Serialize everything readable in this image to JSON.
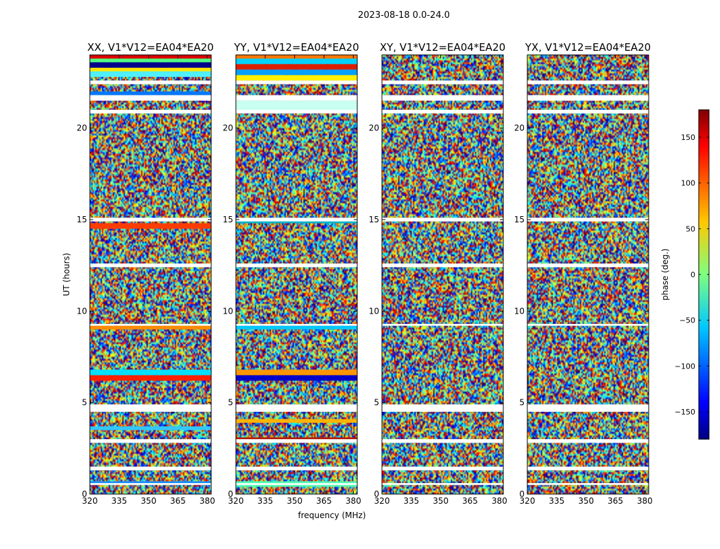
{
  "figure": {
    "suptitle": "2023-08-18 0.0-24.0",
    "shared_xlabel": "frequency (MHz)",
    "shared_ylabel": "UT (hours)"
  },
  "colorbar": {
    "label": "phase (deg.)",
    "range": [
      -180,
      180
    ],
    "ticks": [
      -150,
      -100,
      -50,
      0,
      50,
      100,
      150
    ],
    "tick_labels": [
      "−150",
      "−100",
      "−50",
      "0",
      "50",
      "100",
      "150"
    ],
    "colormap": "jet"
  },
  "chart_data": [
    {
      "type": "heatmap",
      "title": "XX, V1*V12=EA04*EA20",
      "xlabel": "frequency (MHz)",
      "ylabel": "UT (hours)",
      "xlim": [
        320,
        382
      ],
      "ylim": [
        0,
        24
      ],
      "xticks": [
        320,
        335,
        350,
        365,
        380
      ],
      "yticks": [
        0,
        5,
        10,
        15,
        20
      ],
      "value_range_deg": [
        -180,
        180
      ],
      "flagged_bands_hours": [
        [
          0.5,
          0.6
        ],
        [
          1.3,
          1.5
        ],
        [
          2.8,
          3.0
        ],
        [
          4.5,
          4.9
        ],
        [
          9.2,
          9.3
        ],
        [
          12.4,
          12.6
        ],
        [
          14.9,
          15.1
        ],
        [
          20.8,
          21.0
        ],
        [
          21.5,
          21.8
        ],
        [
          22.4,
          22.6
        ]
      ],
      "coherent_bands": [
        {
          "hours": [
            0.6,
            0.7
          ],
          "color": "#1e90ff"
        },
        {
          "hours": [
            3.5,
            3.7
          ],
          "color": "#32c8ff"
        },
        {
          "hours": [
            6.2,
            6.5
          ],
          "color": "#ff2000"
        },
        {
          "hours": [
            6.5,
            6.8
          ],
          "color": "#00e0ff"
        },
        {
          "hours": [
            9.0,
            9.2
          ],
          "color": "#ff8c00"
        },
        {
          "hours": [
            14.5,
            14.8
          ],
          "color": "#ff3c00"
        },
        {
          "hours": [
            21.8,
            22.0
          ],
          "color": "#0078ff"
        },
        {
          "hours": [
            22.8,
            23.1
          ],
          "color": "#50f0ff"
        },
        {
          "hours": [
            23.1,
            23.3
          ],
          "color": "#ffe600"
        },
        {
          "hours": [
            23.3,
            23.6
          ],
          "color": "#00008b"
        },
        {
          "hours": [
            23.6,
            23.8
          ],
          "color": "#50ff80"
        },
        {
          "hours": [
            23.8,
            24.0
          ],
          "color": "#dc0000"
        }
      ]
    },
    {
      "type": "heatmap",
      "title": "YY, V1*V12=EA04*EA20",
      "xlabel": "frequency (MHz)",
      "ylabel": "UT (hours)",
      "xlim": [
        320,
        382
      ],
      "ylim": [
        0,
        24
      ],
      "xticks": [
        320,
        335,
        350,
        365,
        380
      ],
      "yticks": [
        0,
        5,
        10,
        15,
        20
      ],
      "value_range_deg": [
        -180,
        180
      ],
      "flagged_bands_hours": [
        [
          0.5,
          0.6
        ],
        [
          1.3,
          1.5
        ],
        [
          2.8,
          3.0
        ],
        [
          4.5,
          4.9
        ],
        [
          9.2,
          9.3
        ],
        [
          12.4,
          12.6
        ],
        [
          14.9,
          15.1
        ],
        [
          20.8,
          21.0
        ],
        [
          21.5,
          21.8
        ],
        [
          22.4,
          22.6
        ]
      ],
      "coherent_bands": [
        {
          "hours": [
            0.4,
            0.7
          ],
          "color": "#50ffb4"
        },
        {
          "hours": [
            2.9,
            3.1
          ],
          "color": "#b41e00"
        },
        {
          "hours": [
            3.9,
            4.1
          ],
          "color": "#ffb400"
        },
        {
          "hours": [
            6.2,
            6.5
          ],
          "color": "#0000c8"
        },
        {
          "hours": [
            6.5,
            6.8
          ],
          "color": "#ff9600"
        },
        {
          "hours": [
            9.0,
            9.2
          ],
          "color": "#00c8ff"
        },
        {
          "hours": [
            14.8,
            15.0
          ],
          "color": "#00b4c8"
        },
        {
          "hours": [
            21.0,
            21.5
          ],
          "color": "#c8fff0"
        },
        {
          "hours": [
            22.6,
            22.9
          ],
          "color": "#fff000"
        },
        {
          "hours": [
            22.9,
            23.2
          ],
          "color": "#00a0ff"
        },
        {
          "hours": [
            23.2,
            23.5
          ],
          "color": "#dc1e00"
        },
        {
          "hours": [
            23.5,
            23.8
          ],
          "color": "#00d2ff"
        },
        {
          "hours": [
            23.8,
            24.0
          ],
          "color": "#ff7800"
        }
      ]
    },
    {
      "type": "heatmap",
      "title": "XY, V1*V12=EA04*EA20",
      "xlabel": "frequency (MHz)",
      "ylabel": "UT (hours)",
      "xlim": [
        320,
        382
      ],
      "ylim": [
        0,
        24
      ],
      "xticks": [
        320,
        335,
        350,
        365,
        380
      ],
      "yticks": [
        0,
        5,
        10,
        15,
        20
      ],
      "value_range_deg": [
        -180,
        180
      ],
      "flagged_bands_hours": [
        [
          0.5,
          0.6
        ],
        [
          1.3,
          1.5
        ],
        [
          2.8,
          3.0
        ],
        [
          4.5,
          4.9
        ],
        [
          9.2,
          9.3
        ],
        [
          12.4,
          12.6
        ],
        [
          14.9,
          15.1
        ],
        [
          20.8,
          21.0
        ],
        [
          21.5,
          21.8
        ],
        [
          22.4,
          22.6
        ]
      ],
      "coherent_bands": []
    },
    {
      "type": "heatmap",
      "title": "YX, V1*V12=EA04*EA20",
      "xlabel": "frequency (MHz)",
      "ylabel": "UT (hours)",
      "xlim": [
        320,
        382
      ],
      "ylim": [
        0,
        24
      ],
      "xticks": [
        320,
        335,
        350,
        365,
        380
      ],
      "yticks": [
        0,
        5,
        10,
        15,
        20
      ],
      "value_range_deg": [
        -180,
        180
      ],
      "flagged_bands_hours": [
        [
          0.5,
          0.6
        ],
        [
          1.3,
          1.5
        ],
        [
          2.8,
          3.0
        ],
        [
          4.5,
          4.9
        ],
        [
          9.2,
          9.3
        ],
        [
          12.4,
          12.6
        ],
        [
          14.9,
          15.1
        ],
        [
          20.8,
          21.0
        ],
        [
          21.5,
          21.8
        ],
        [
          22.4,
          22.6
        ]
      ],
      "coherent_bands": []
    }
  ]
}
